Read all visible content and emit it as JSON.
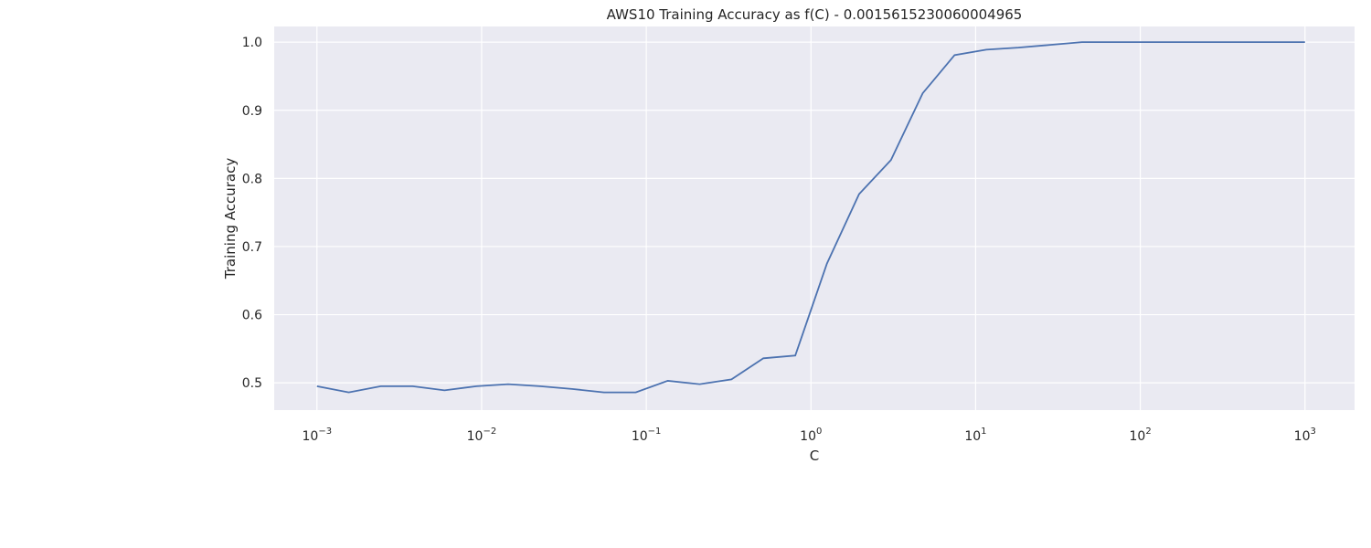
{
  "chart_data": {
    "type": "line",
    "title": "AWS10 Training Accuracy as f(C) - 0.0015615230060004965",
    "xlabel": "C",
    "ylabel": "Training Accuracy",
    "xscale": "log",
    "xlim": [
      0.00055,
      2000
    ],
    "ylim": [
      0.46,
      1.023
    ],
    "grid": true,
    "background": "#eaeaf2",
    "grid_color": "#ffffff",
    "line_color": "#4c72b0",
    "x_ticks": [
      {
        "base": "10",
        "exp": "−3",
        "value": 0.001
      },
      {
        "base": "10",
        "exp": "−2",
        "value": 0.01
      },
      {
        "base": "10",
        "exp": "−1",
        "value": 0.1
      },
      {
        "base": "10",
        "exp": "0",
        "value": 1
      },
      {
        "base": "10",
        "exp": "1",
        "value": 10
      },
      {
        "base": "10",
        "exp": "2",
        "value": 100
      },
      {
        "base": "10",
        "exp": "3",
        "value": 1000
      }
    ],
    "y_ticks": [
      "0.5",
      "0.6",
      "0.7",
      "0.8",
      "0.9",
      "1.0"
    ],
    "series": [
      {
        "x": [
          0.001,
          0.00156,
          0.00244,
          0.00381,
          0.00595,
          0.00929,
          0.0145,
          0.0227,
          0.0354,
          0.0553,
          0.0863,
          0.135,
          0.211,
          0.329,
          0.514,
          0.803,
          1.25,
          1.96,
          3.06,
          4.77,
          7.45,
          11.6,
          18.2,
          28.4,
          44.3,
          69.2,
          108,
          169,
          264,
          412,
          643,
          1000
        ],
        "y": [
          0.495,
          0.486,
          0.495,
          0.495,
          0.489,
          0.495,
          0.498,
          0.495,
          0.491,
          0.486,
          0.486,
          0.503,
          0.498,
          0.505,
          0.536,
          0.54,
          0.675,
          0.777,
          0.827,
          0.925,
          0.981,
          0.989,
          0.992,
          0.996,
          1.0,
          1.0,
          1.0,
          1.0,
          1.0,
          1.0,
          1.0,
          1.0
        ]
      }
    ]
  }
}
